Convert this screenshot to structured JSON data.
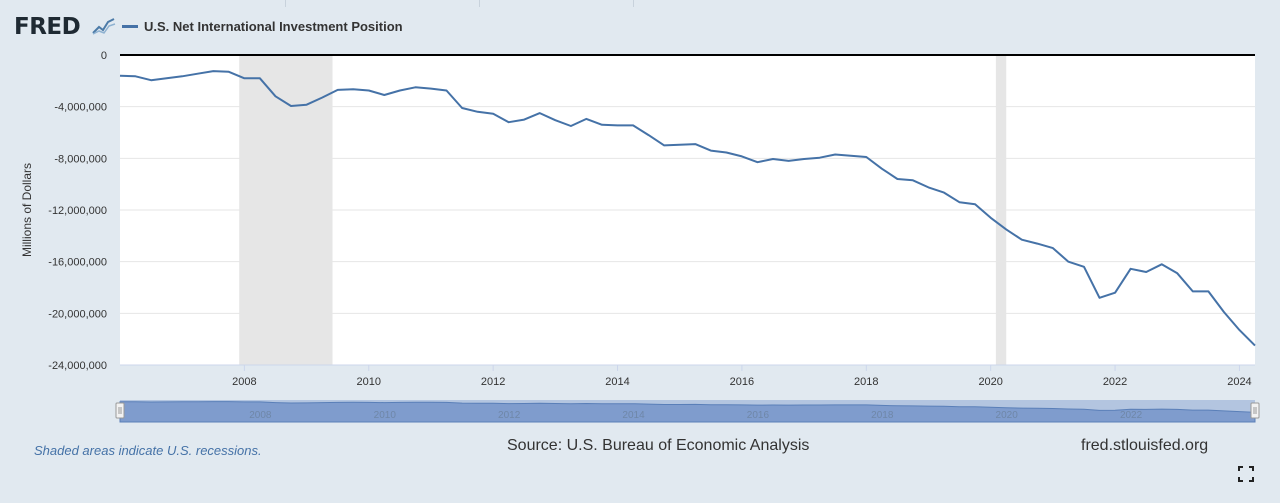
{
  "brand": {
    "logo_text": "FRED",
    "logo_icon": "sparkline-icon"
  },
  "chart_data": {
    "type": "line",
    "title": "",
    "xlabel": "",
    "ylabel": "Millions of Dollars",
    "ylim": [
      -24000000,
      0
    ],
    "xlim": [
      "2006-01",
      "2024-04"
    ],
    "y_ticks": [
      0,
      -4000000,
      -8000000,
      -12000000,
      -16000000,
      -20000000,
      -24000000
    ],
    "y_tick_labels": [
      "0",
      "-4,000,000",
      "-8,000,000",
      "-12,000,000",
      "-16,000,000",
      "-20,000,000",
      "-24,000,000"
    ],
    "x_ticks": [
      2008,
      2010,
      2012,
      2014,
      2016,
      2018,
      2020,
      2022,
      2024
    ],
    "x_tick_labels": [
      "2008",
      "2010",
      "2012",
      "2014",
      "2016",
      "2018",
      "2020",
      "2022",
      "2024"
    ],
    "grid": true,
    "legend_position": "top-left",
    "recessions": [
      {
        "start": "2007-12",
        "end": "2009-06"
      },
      {
        "start": "2020-02",
        "end": "2020-04"
      }
    ],
    "series": [
      {
        "name": "U.S. Net International Investment Position",
        "color": "#4572a7",
        "x": [
          "2006-01",
          "2006-04",
          "2006-07",
          "2006-10",
          "2007-01",
          "2007-04",
          "2007-07",
          "2007-10",
          "2008-01",
          "2008-04",
          "2008-07",
          "2008-10",
          "2009-01",
          "2009-04",
          "2009-07",
          "2009-10",
          "2010-01",
          "2010-04",
          "2010-07",
          "2010-10",
          "2011-01",
          "2011-04",
          "2011-07",
          "2011-10",
          "2012-01",
          "2012-04",
          "2012-07",
          "2012-10",
          "2013-01",
          "2013-04",
          "2013-07",
          "2013-10",
          "2014-01",
          "2014-04",
          "2014-07",
          "2014-10",
          "2015-01",
          "2015-04",
          "2015-07",
          "2015-10",
          "2016-01",
          "2016-04",
          "2016-07",
          "2016-10",
          "2017-01",
          "2017-04",
          "2017-07",
          "2017-10",
          "2018-01",
          "2018-04",
          "2018-07",
          "2018-10",
          "2019-01",
          "2019-04",
          "2019-07",
          "2019-10",
          "2020-01",
          "2020-04",
          "2020-07",
          "2020-10",
          "2021-01",
          "2021-04",
          "2021-07",
          "2021-10",
          "2022-01",
          "2022-04",
          "2022-07",
          "2022-10",
          "2023-01",
          "2023-04",
          "2023-07",
          "2023-10",
          "2024-01",
          "2024-04"
        ],
        "values": [
          -1600000,
          -1650000,
          -1950000,
          -1800000,
          -1650000,
          -1450000,
          -1250000,
          -1300000,
          -1800000,
          -1800000,
          -3200000,
          -3950000,
          -3850000,
          -3300000,
          -2700000,
          -2650000,
          -2750000,
          -3100000,
          -2750000,
          -2500000,
          -2600000,
          -2750000,
          -4100000,
          -4400000,
          -4550000,
          -5200000,
          -5000000,
          -4500000,
          -5050000,
          -5500000,
          -4950000,
          -5400000,
          -5450000,
          -5450000,
          -6200000,
          -7000000,
          -6950000,
          -6900000,
          -7400000,
          -7550000,
          -7850000,
          -8300000,
          -8050000,
          -8200000,
          -8050000,
          -7950000,
          -7700000,
          -7800000,
          -7900000,
          -8800000,
          -9600000,
          -9700000,
          -10250000,
          -10650000,
          -11400000,
          -11550000,
          -12600000,
          -13500000,
          -14300000,
          -14600000,
          -14950000,
          -16000000,
          -16400000,
          -18800000,
          -18400000,
          -16550000,
          -16800000,
          -16200000,
          -16900000,
          -18300000,
          -18300000,
          -19900000,
          -21300000,
          -22500000
        ]
      }
    ]
  },
  "footer": {
    "recession_note": "Shaded areas indicate U.S. recessions.",
    "source": "Source: U.S. Bureau of Economic Analysis",
    "site": "fred.stlouisfed.org"
  },
  "navigator": {
    "labels": [
      "2008",
      "2010",
      "2012",
      "2014",
      "2016",
      "2018",
      "2020",
      "2022"
    ]
  }
}
